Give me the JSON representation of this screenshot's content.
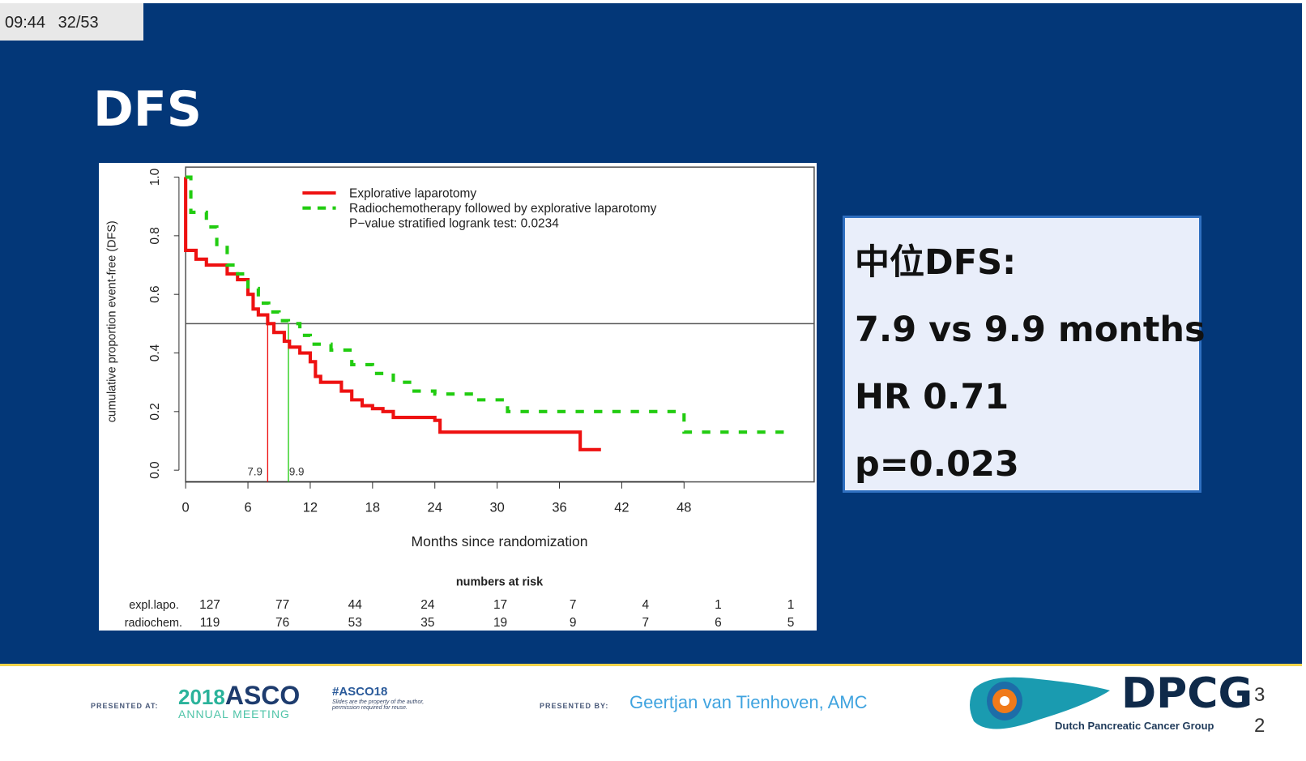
{
  "topbar": {
    "time": "09:44",
    "slide_counter": "32/53"
  },
  "title": "DFS",
  "info": {
    "line1": "中位DFS:",
    "line2": "7.9 vs 9.9 months",
    "line3": "HR 0.71",
    "line4": "p=0.023"
  },
  "chart_data": {
    "type": "line",
    "ylabel": "cumulative proportion event-free (DFS)",
    "xlabel": "Months since randomization",
    "xticks": [
      0,
      6,
      12,
      18,
      24,
      30,
      36,
      42,
      48
    ],
    "yticks": [
      "0.0",
      "0.2",
      "0.4",
      "0.6",
      "0.8",
      "1.0"
    ],
    "xlim": [
      0,
      60.5
    ],
    "ylim": [
      0,
      1.0
    ],
    "legend": [
      "Explorative laparotomy",
      "Radiochemotherapy followed by explorative laparotomy"
    ],
    "pvalue_text": "P−value stratified logrank test: 0.0234",
    "median_labels": [
      "7.9",
      "9.9"
    ],
    "medians": [
      7.9,
      9.9
    ],
    "colors": [
      "#ee1111",
      "#22cc11"
    ],
    "series": [
      {
        "name": "Explorative laparotomy",
        "points": [
          [
            0,
            1.0
          ],
          [
            0,
            0.75
          ],
          [
            1,
            0.72
          ],
          [
            2,
            0.7
          ],
          [
            4,
            0.67
          ],
          [
            5,
            0.65
          ],
          [
            6,
            0.6
          ],
          [
            6.5,
            0.55
          ],
          [
            7,
            0.53
          ],
          [
            7.9,
            0.5
          ],
          [
            8.5,
            0.47
          ],
          [
            9.5,
            0.44
          ],
          [
            10,
            0.42
          ],
          [
            11,
            0.4
          ],
          [
            12,
            0.37
          ],
          [
            12.5,
            0.32
          ],
          [
            13,
            0.3
          ],
          [
            15,
            0.27
          ],
          [
            16,
            0.24
          ],
          [
            17,
            0.22
          ],
          [
            18,
            0.21
          ],
          [
            19,
            0.2
          ],
          [
            20,
            0.18
          ],
          [
            24,
            0.17
          ],
          [
            24.5,
            0.13
          ],
          [
            38,
            0.13
          ],
          [
            38,
            0.07
          ],
          [
            40,
            0.07
          ]
        ]
      },
      {
        "name": "Radiochemotherapy followed by explorative laparotomy",
        "points": [
          [
            0,
            1.0
          ],
          [
            0.5,
            0.88
          ],
          [
            2,
            0.83
          ],
          [
            3,
            0.76
          ],
          [
            4,
            0.7
          ],
          [
            5,
            0.67
          ],
          [
            6,
            0.62
          ],
          [
            7,
            0.57
          ],
          [
            8,
            0.54
          ],
          [
            9,
            0.51
          ],
          [
            9.9,
            0.5
          ],
          [
            11,
            0.46
          ],
          [
            12,
            0.43
          ],
          [
            14,
            0.41
          ],
          [
            16,
            0.36
          ],
          [
            18,
            0.33
          ],
          [
            20,
            0.3
          ],
          [
            22,
            0.27
          ],
          [
            24,
            0.26
          ],
          [
            28,
            0.24
          ],
          [
            31,
            0.2
          ],
          [
            48,
            0.2
          ],
          [
            48,
            0.13
          ],
          [
            58.5,
            0.13
          ]
        ]
      }
    ],
    "risk_title": "numbers at risk",
    "risk": [
      {
        "label": "expl.lapo.",
        "values": [
          "127",
          "77",
          "44",
          "24",
          "17",
          "7",
          "4",
          "1",
          "1"
        ]
      },
      {
        "label": "radiochem.",
        "values": [
          "119",
          "76",
          "53",
          "35",
          "19",
          "9",
          "7",
          "6",
          "5"
        ]
      }
    ]
  },
  "footer": {
    "presented_at": "PRESENTED AT:",
    "asco_year": "2018",
    "asco": "ASCO",
    "asco_sub": "ANNUAL MEETING",
    "hashtag": "#ASCO18",
    "disclaimer1": "Slides are the property of the author,",
    "disclaimer2": "permission required for reuse.",
    "presented_by": "PRESENTED BY:",
    "presenter": "Geertjan van Tienhoven, AMC",
    "logo": "DPCG",
    "logo_sub": "Dutch Pancreatic Cancer Group",
    "page_num_1": "3",
    "page_num_2": "2"
  }
}
